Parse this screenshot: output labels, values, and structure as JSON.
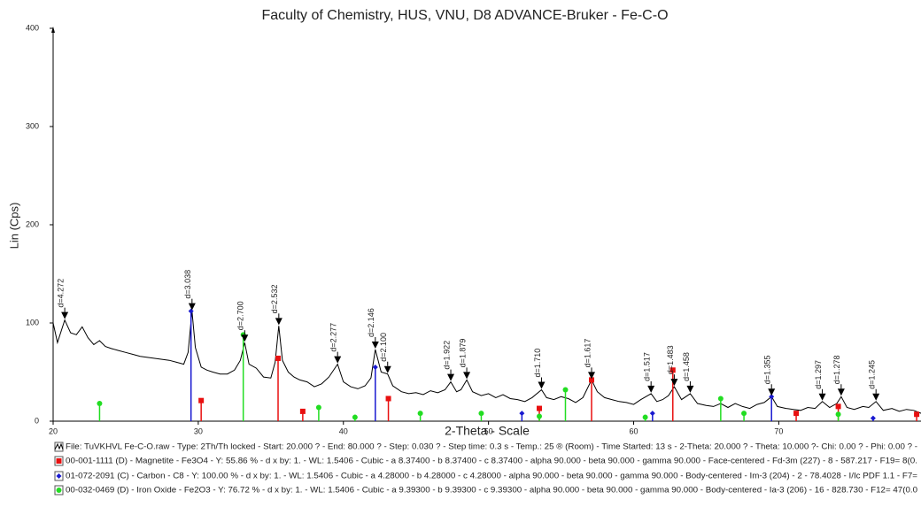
{
  "chart_data": {
    "type": "line",
    "title": "Faculty of Chemistry, HUS, VNU, D8 ADVANCE-Bruker - Fe-C-O",
    "x_label": "2-Theta - Scale",
    "y_label": "Lin (Cps)",
    "xlim": [
      20,
      79.8
    ],
    "ylim": [
      0,
      400
    ],
    "xticks": [
      20,
      30,
      40,
      50,
      60,
      70
    ],
    "yticks": [
      0,
      100,
      200,
      300,
      400
    ],
    "series": [
      {
        "name": "File: TuVKHVL Fe-C-O.raw - Type: 2Th/Th locked - Start: 20.000 ? - End: 80.000 ? - Step: 0.030 ? - Step time: 0.3 s - Temp.: 25 ® (Room) - Time Started: 13 s - 2-Theta: 20.000 ? - Theta: 10.000 ?- Chi: 0.00 ? - Phi: 0.00 ? -",
        "type": "line",
        "color": "#000000",
        "x": [
          20,
          20.3,
          20.8,
          21.2,
          21.6,
          22,
          22.4,
          22.8,
          23.2,
          23.6,
          24,
          24.5,
          25,
          25.5,
          26,
          26.5,
          27,
          27.5,
          28,
          28.5,
          29,
          29.3,
          29.57,
          29.8,
          30.2,
          30.6,
          31,
          31.5,
          32,
          32.5,
          32.9,
          33.2,
          33.5,
          34,
          34.5,
          35,
          35.3,
          35.55,
          35.8,
          36.2,
          36.6,
          37,
          37.5,
          38,
          38.5,
          39,
          39.6,
          40,
          40.5,
          41,
          41.5,
          41.9,
          42.2,
          42.6,
          43.05,
          43.4,
          44,
          44.5,
          45,
          45.5,
          46,
          46.5,
          47,
          47.4,
          47.8,
          48.1,
          48.5,
          48.9,
          49.5,
          50,
          50.5,
          51,
          51.5,
          52,
          52.5,
          53,
          53.65,
          54,
          54.5,
          55,
          55.5,
          56,
          56.5,
          57.1,
          57.5,
          58,
          58.5,
          59,
          59.5,
          60,
          60.5,
          61.2,
          61.6,
          62,
          62.4,
          62.8,
          63.3,
          63.9,
          64.4,
          65,
          65.5,
          66,
          66.5,
          67,
          67.5,
          68,
          68.5,
          69,
          69.5,
          69.9,
          70.5,
          71,
          71.5,
          72,
          72.5,
          73,
          73.5,
          74,
          74.3,
          74.7,
          75.2,
          75.8,
          76.2,
          76.7,
          77.2,
          77.8,
          78.3,
          78.8,
          79.3,
          79.8
        ],
        "values": [
          100,
          80,
          103,
          90,
          88,
          96,
          85,
          78,
          82,
          76,
          74,
          72,
          70,
          68,
          66,
          65,
          64,
          63,
          62,
          60,
          58,
          70,
          112,
          75,
          55,
          52,
          50,
          48,
          48,
          52,
          62,
          80,
          58,
          54,
          45,
          44,
          60,
          97,
          62,
          50,
          45,
          42,
          40,
          35,
          38,
          45,
          58,
          40,
          35,
          33,
          36,
          44,
          73,
          50,
          48,
          36,
          30,
          28,
          29,
          27,
          31,
          29,
          32,
          40,
          30,
          32,
          42,
          30,
          26,
          28,
          24,
          27,
          23,
          22,
          20,
          24,
          32,
          24,
          22,
          25,
          23,
          19,
          24,
          42,
          30,
          24,
          22,
          20,
          19,
          17,
          22,
          28,
          20,
          22,
          26,
          35,
          22,
          28,
          18,
          16,
          15,
          18,
          14,
          18,
          15,
          13,
          17,
          19,
          25,
          15,
          13,
          12,
          11,
          14,
          13,
          20,
          14,
          18,
          25,
          14,
          12,
          15,
          14,
          20,
          11,
          13,
          10,
          12,
          11,
          8
        ]
      },
      {
        "name": "00-001-1111 (D) - Magnetite - Fe3O4 - Y: 55.86 % - d x by: 1. - WL: 1.5406 - Cubic - a 8.37400 - b 8.37400 - c 8.37400 - alpha 90.000 - beta 90.000 - gamma 90.000 - Face-centered - Fd-3m (227) - 8 - 587.217 - F19= 8(0.",
        "type": "stick",
        "color": "#e81010",
        "marker": "square",
        "x": [
          30.2,
          35.5,
          37.2,
          43.1,
          53.5,
          57.1,
          62.7,
          71.2,
          74.1,
          79.5
        ],
        "values": [
          21,
          64,
          10,
          23,
          13,
          42,
          52,
          8,
          15,
          7
        ]
      },
      {
        "name": "01-072-2091 (C) - Carbon - C8 - Y: 100.00 % - d x by: 1. - WL: 1.5406 - Cubic - a 4.28000 - b 4.28000 - c 4.28000 - alpha 90.000 - beta 90.000 - gamma 90.000 - Body-centered - Im-3 (204) - 2 - 78.4028 - I/Ic PDF 1.1 - F7=",
        "type": "stick",
        "color": "#1818d0",
        "marker": "diamond",
        "x": [
          29.5,
          42.2,
          52.3,
          61.3,
          69.5,
          76.5
        ],
        "values": [
          112,
          55,
          8,
          8,
          25,
          3
        ]
      },
      {
        "name": "00-032-0469 (D) - Iron Oxide - Fe2O3 - Y: 76.72 % - d x by: 1. - WL: 1.5406 - Cubic - a 9.39300 - b 9.39300 - c 9.39300 - alpha 90.000 - beta 90.000 - gamma 90.000 - Body-centered - Ia-3 (206) - 16 - 828.730 - F12= 47(0.0",
        "type": "stick",
        "color": "#22dd22",
        "marker": "circle",
        "x": [
          23.2,
          33.1,
          38.3,
          40.8,
          45.3,
          49.5,
          53.5,
          55.3,
          60.8,
          66.0,
          67.6,
          74.1
        ],
        "values": [
          18,
          88,
          14,
          4,
          8,
          8,
          5,
          32,
          4,
          23,
          8,
          7
        ]
      }
    ],
    "annotations": [
      {
        "x": 20.8,
        "y": 103,
        "label": "d=4.272"
      },
      {
        "x": 29.57,
        "y": 112,
        "label": "d=3.038"
      },
      {
        "x": 33.2,
        "y": 80,
        "label": "d=2.700"
      },
      {
        "x": 35.55,
        "y": 97,
        "label": "d=2.532"
      },
      {
        "x": 39.6,
        "y": 58,
        "label": "d=2.277"
      },
      {
        "x": 42.2,
        "y": 73,
        "label": "d=2.146"
      },
      {
        "x": 43.05,
        "y": 48,
        "label": "d=2.100"
      },
      {
        "x": 47.4,
        "y": 40,
        "label": "d=1.922"
      },
      {
        "x": 48.5,
        "y": 42,
        "label": "d=1.879"
      },
      {
        "x": 53.65,
        "y": 32,
        "label": "d=1.710"
      },
      {
        "x": 57.1,
        "y": 42,
        "label": "d=1.617"
      },
      {
        "x": 61.2,
        "y": 28,
        "label": "d=1.517"
      },
      {
        "x": 62.8,
        "y": 35,
        "label": "d=1.483"
      },
      {
        "x": 63.9,
        "y": 28,
        "label": "d=1.458"
      },
      {
        "x": 69.5,
        "y": 25,
        "label": "d=1.355"
      },
      {
        "x": 73.0,
        "y": 20,
        "label": "d=1.297"
      },
      {
        "x": 74.3,
        "y": 25,
        "label": "d=1.278"
      },
      {
        "x": 76.7,
        "y": 20,
        "label": "d=1.245"
      }
    ]
  }
}
